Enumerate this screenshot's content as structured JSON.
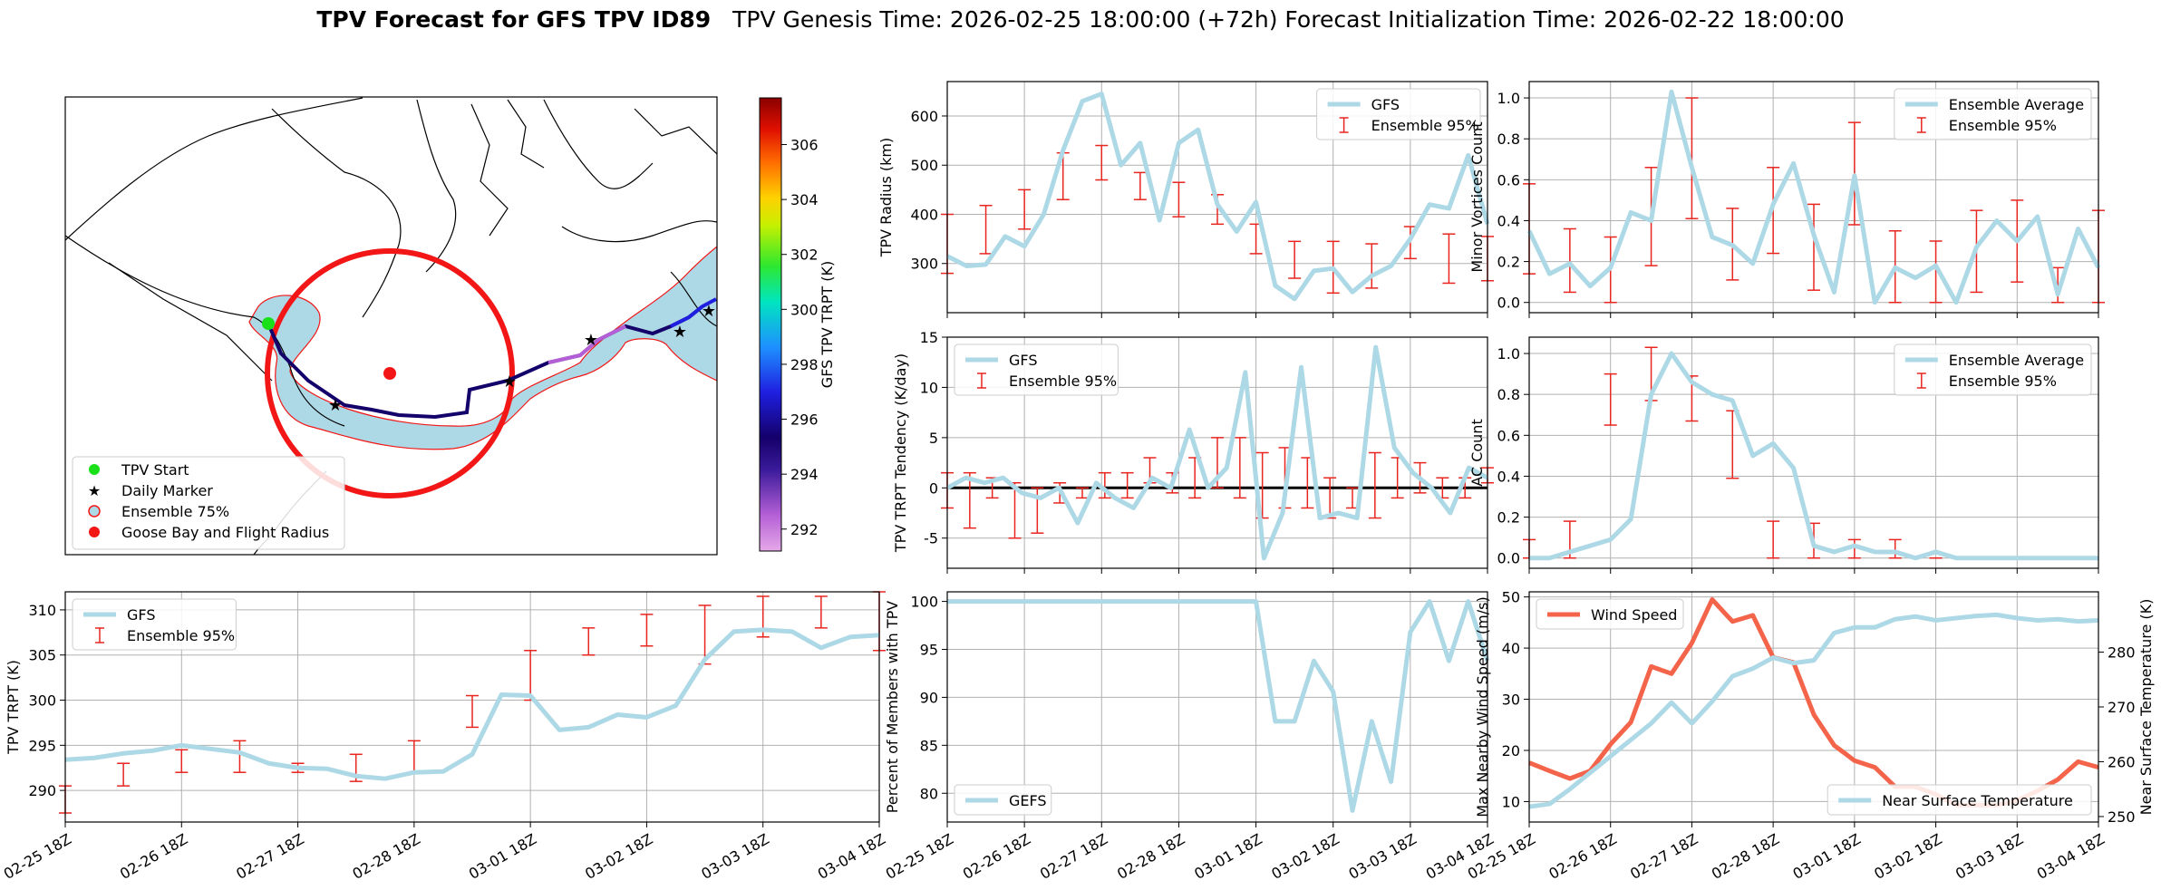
{
  "title": {
    "bold": "TPV Forecast for GFS TPV ID89",
    "rest": "TPV Genesis Time: 2026-02-25 18:00:00 (+72h)   Forecast Initialization Time: 2026-02-22 18:00:00"
  },
  "colors": {
    "gfs_line": "#add8e6",
    "err": "#e8251f",
    "wind": "#f4644a",
    "temp_label": "#3b6fd6",
    "land_fill": "#add8e6",
    "circle": "#f21616",
    "start_marker": "#19e019",
    "daily_marker": "#ff00ff"
  },
  "x_ticks": [
    "02-25 18Z",
    "02-26 18Z",
    "02-27 18Z",
    "02-28 18Z",
    "03-01 18Z",
    "03-02 18Z",
    "03-03 18Z",
    "03-04 18Z"
  ],
  "map": {
    "colorbar_label": "GFS TPV TRPT (K)",
    "colorbar_ticks": [
      "292",
      "294",
      "296",
      "298",
      "300",
      "302",
      "304",
      "306"
    ],
    "legend": [
      {
        "label": "TPV Start",
        "symbol": "green-dot-icon"
      },
      {
        "label": "Daily Marker",
        "symbol": "magenta-star-icon"
      },
      {
        "label": "Ensemble 75%",
        "symbol": "blue-patch-icon"
      },
      {
        "label": "Goose Bay and Flight Radius",
        "symbol": "red-dot-icon"
      }
    ]
  },
  "chart_data": [
    {
      "id": "radius",
      "type": "line",
      "ylabel": "TPV Radius (km)",
      "ylim": [
        200,
        670
      ],
      "yticks": [
        300,
        400,
        500,
        600
      ],
      "legend": [
        "GFS",
        "Ensemble 95%"
      ],
      "legend_pos": "upper right",
      "series": [
        {
          "name": "GFS",
          "values": [
            315,
            295,
            298,
            355,
            335,
            400,
            530,
            630,
            645,
            500,
            545,
            388,
            545,
            572,
            420,
            365,
            425,
            255,
            228,
            285,
            290,
            242,
            275,
            295,
            350,
            420,
            412,
            520,
            380
          ]
        }
      ],
      "err": [
        [
          280,
          400
        ],
        [
          320,
          418
        ],
        [
          370,
          450
        ],
        [
          430,
          525
        ],
        [
          470,
          540
        ],
        [
          430,
          485
        ],
        [
          395,
          465
        ],
        [
          380,
          440
        ],
        [
          320,
          380
        ],
        [
          270,
          345
        ],
        [
          240,
          345
        ],
        [
          250,
          340
        ],
        [
          310,
          375
        ],
        [
          260,
          360
        ],
        [
          265,
          355
        ]
      ]
    },
    {
      "id": "minor",
      "type": "line",
      "ylabel": "Minor Vortices Count",
      "ylim": [
        -0.05,
        1.08
      ],
      "yticks": [
        0.0,
        0.2,
        0.4,
        0.6,
        0.8,
        1.0
      ],
      "legend": [
        "Ensemble Average",
        "Ensemble 95%"
      ],
      "legend_pos": "upper right",
      "series": [
        {
          "name": "Ensemble Average",
          "values": [
            0.35,
            0.14,
            0.19,
            0.08,
            0.17,
            0.44,
            0.4,
            1.03,
            0.66,
            0.32,
            0.28,
            0.19,
            0.48,
            0.68,
            0.33,
            0.05,
            0.62,
            0.0,
            0.17,
            0.12,
            0.18,
            0.0,
            0.27,
            0.4,
            0.3,
            0.42,
            0.04,
            0.36,
            0.17
          ]
        },
        {
          "name": "Ensemble 95%",
          "values": []
        }
      ],
      "err": [
        [
          0.14,
          0.58
        ],
        [
          0.05,
          0.36
        ],
        [
          0.0,
          0.32
        ],
        [
          0.18,
          0.66
        ],
        [
          0.41,
          1.0
        ],
        [
          0.11,
          0.46
        ],
        [
          0.24,
          0.66
        ],
        [
          0.06,
          0.48
        ],
        [
          0.38,
          0.88
        ],
        [
          0.0,
          0.35
        ],
        [
          0.0,
          0.3
        ],
        [
          0.05,
          0.45
        ],
        [
          0.1,
          0.5
        ],
        [
          0.0,
          0.17
        ],
        [
          0.0,
          0.45
        ]
      ]
    },
    {
      "id": "tendency",
      "type": "line",
      "ylabel": "TPV TRPT Tendency (K/day)",
      "ylim": [
        -8,
        15
      ],
      "yticks": [
        -5,
        0,
        5,
        10,
        15
      ],
      "legend": [
        "GFS",
        "Ensemble 95%"
      ],
      "legend_pos": "upper left",
      "series": [
        {
          "name": "GFS",
          "values": [
            0,
            1,
            0.5,
            1,
            -0.5,
            -1,
            0,
            -3.5,
            0.5,
            -1,
            -2,
            1,
            0,
            5.8,
            0,
            2,
            11.5,
            -7,
            -2.5,
            12,
            -3,
            -2.5,
            -3,
            14,
            4,
            1.5,
            0,
            -2.5,
            2,
            1
          ]
        }
      ],
      "err": [
        [
          -2,
          1.5
        ],
        [
          -4,
          1.5
        ],
        [
          -1,
          1
        ],
        [
          -5,
          0.5
        ],
        [
          -4.5,
          0
        ],
        [
          -1.5,
          0.5
        ],
        [
          -1,
          0
        ],
        [
          -1,
          1.5
        ],
        [
          -1,
          1.5
        ],
        [
          0.5,
          3
        ],
        [
          -0.5,
          1.5
        ],
        [
          -1,
          3
        ],
        [
          0,
          5
        ],
        [
          -1,
          5
        ],
        [
          -3,
          3.5
        ],
        [
          -2,
          4
        ],
        [
          -2,
          3
        ],
        [
          -3,
          1
        ],
        [
          -2,
          0
        ],
        [
          -3,
          3.5
        ],
        [
          -1,
          3
        ],
        [
          -0.5,
          2.5
        ],
        [
          -1,
          1
        ],
        [
          -1,
          1
        ],
        [
          0.5,
          2
        ]
      ]
    },
    {
      "id": "ac",
      "type": "line",
      "ylabel": "AC Count",
      "ylim": [
        -0.05,
        1.08
      ],
      "yticks": [
        0.0,
        0.2,
        0.4,
        0.6,
        0.8,
        1.0
      ],
      "legend": [
        "Ensemble Average",
        "Ensemble 95%"
      ],
      "legend_pos": "upper right",
      "series": [
        {
          "name": "Ensemble Average",
          "values": [
            0.0,
            0.0,
            0.03,
            0.06,
            0.09,
            0.19,
            0.8,
            1.0,
            0.86,
            0.8,
            0.77,
            0.5,
            0.56,
            0.44,
            0.06,
            0.03,
            0.06,
            0.03,
            0.03,
            0.0,
            0.03,
            0.0,
            0.0,
            0.0,
            0.0,
            0.0,
            0.0,
            0.0,
            0.0
          ]
        }
      ],
      "err": [
        [
          0.0,
          0.09
        ],
        [
          0.0,
          0.18
        ],
        [
          0.65,
          0.9
        ],
        [
          0.77,
          1.03
        ],
        [
          0.67,
          0.89
        ],
        [
          0.39,
          0.72
        ],
        [
          0.0,
          0.18
        ],
        [
          0.0,
          0.17
        ],
        [
          0.0,
          0.09
        ],
        [
          0.0,
          0.09
        ],
        [
          0.0,
          0.0
        ],
        [
          0.0,
          0.0
        ],
        [
          0.0,
          0.0
        ],
        [
          0.0,
          0.0
        ]
      ]
    },
    {
      "id": "trpt",
      "type": "line",
      "ylabel": "TPV TRPT (K)",
      "ylim": [
        286.5,
        312
      ],
      "yticks": [
        290,
        295,
        300,
        305,
        310
      ],
      "legend": [
        "GFS",
        "Ensemble 95%"
      ],
      "legend_pos": "upper left",
      "series": [
        {
          "name": "GFS",
          "values": [
            293.4,
            293.6,
            294.1,
            294.4,
            295.0,
            294.6,
            294.2,
            293.0,
            292.5,
            292.4,
            291.6,
            291.3,
            292.0,
            292.1,
            294.0,
            300.6,
            300.5,
            296.7,
            297.0,
            298.4,
            298.1,
            299.4,
            304.5,
            307.6,
            307.8,
            307.6,
            305.8,
            307.0,
            307.2
          ]
        }
      ],
      "err": [
        [
          287.5,
          290.5
        ],
        [
          290.5,
          293.0
        ],
        [
          292.0,
          294.5
        ],
        [
          292.0,
          295.5
        ],
        [
          292.0,
          293.0
        ],
        [
          291.0,
          294.0
        ],
        [
          292.0,
          295.5
        ],
        [
          297.0,
          300.5
        ],
        [
          300.0,
          305.5
        ],
        [
          305.0,
          308.0
        ],
        [
          306.0,
          309.5
        ],
        [
          304.0,
          310.5
        ],
        [
          307.0,
          311.5
        ],
        [
          308.0,
          311.5
        ],
        [
          305.5,
          312.0
        ]
      ]
    },
    {
      "id": "percent",
      "type": "line",
      "ylabel": "Percent of Members with TPV",
      "ylim": [
        77,
        101
      ],
      "yticks": [
        80,
        85,
        90,
        95,
        100
      ],
      "legend": [
        "GEFS"
      ],
      "legend_pos": "lower left",
      "series": [
        {
          "name": "GEFS",
          "values": [
            100,
            100,
            100,
            100,
            100,
            100,
            100,
            100,
            100,
            100,
            100,
            100,
            100,
            100,
            100,
            100,
            100,
            87.5,
            87.5,
            93.8,
            90.6,
            78.2,
            87.5,
            81.2,
            96.8,
            100,
            93.8,
            100,
            93.8
          ]
        }
      ]
    },
    {
      "id": "wind",
      "type": "line",
      "ylabel": "Max Nearby Wind Speed (m/s)",
      "ylabel2": "Near Surface Temperature (K)",
      "ylim": [
        6,
        51
      ],
      "yticks": [
        10,
        20,
        30,
        40,
        50
      ],
      "ylim2": [
        249,
        291
      ],
      "yticks2": [
        250,
        260,
        270,
        280
      ],
      "legend": [
        "Wind Speed"
      ],
      "legend2": [
        "Near Surface Temperature"
      ],
      "legend_pos": "upper left",
      "legend2_pos": "lower right",
      "series": [
        {
          "name": "Wind Speed",
          "values": [
            17.6,
            16,
            14.5,
            16,
            21.2,
            25.5,
            36.4,
            35,
            41,
            49.5,
            45.2,
            46.4,
            38.2,
            37.2,
            27,
            21,
            18,
            16.7,
            12.9,
            12.9,
            11.4,
            9.3,
            9.3,
            9.3,
            10.2,
            12.1,
            14.3,
            17.8,
            16.7
          ]
        },
        {
          "name": "Near Surface Temperature",
          "values": [
            251.8,
            252.3,
            255.0,
            258.0,
            261.0,
            264.0,
            267.0,
            270.8,
            267.0,
            271.0,
            275.6,
            277.0,
            279.0,
            278.0,
            278.5,
            283.5,
            284.5,
            284.5,
            286.0,
            286.5,
            285.8,
            286.2,
            286.6,
            286.8,
            286.2,
            285.8,
            286.0,
            285.6,
            285.8
          ]
        }
      ]
    }
  ]
}
